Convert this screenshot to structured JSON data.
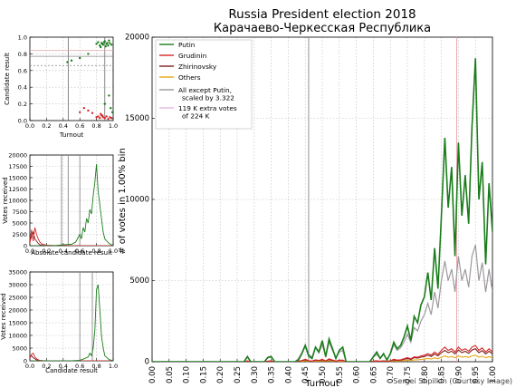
{
  "credit": "Sergei Shpilkin (Courtesy Image)",
  "colors": {
    "putin": "#1a7d1a",
    "grudinin": "#d62728",
    "zhirinovsky": "#7f1d1d",
    "others": "#e6a817",
    "except": "#999999",
    "extra": "#e0b8e0",
    "vline": "#888888",
    "pinkline": "#e8a0a8"
  },
  "chart_data": [
    {
      "id": "main",
      "type": "line",
      "title": "Russia President election 2018",
      "subtitle": "Карачаево-Черкесская Республика",
      "xlabel": "Turnout",
      "ylabel": "# of votes in 1.00% bin",
      "xlim": [
        0,
        1
      ],
      "ylim": [
        0,
        20000
      ],
      "xticks": [
        "0.00",
        "0.05",
        "0.10",
        "0.15",
        "0.20",
        "0.25",
        "0.30",
        "0.35",
        "0.40",
        "0.45",
        "0.50",
        "0.55",
        "0.60",
        "0.65",
        "0.70",
        "0.75",
        "0.80",
        "0.85",
        "0.90",
        "0.95",
        "1.00"
      ],
      "yticks": [
        "0",
        "5000",
        "10000",
        "15000",
        "20000"
      ],
      "grid": true,
      "legend_position": "top-left",
      "legend": [
        "Putin",
        "Grudinin",
        "Zhirinovsky",
        "Others",
        "All except Putin,\nscaled by 3.322",
        "119 K extra votes\nof 224 K"
      ],
      "vlines": [
        0.46,
        0.895
      ],
      "x": [
        0.0,
        0.05,
        0.1,
        0.15,
        0.2,
        0.25,
        0.27,
        0.28,
        0.29,
        0.3,
        0.33,
        0.34,
        0.35,
        0.36,
        0.4,
        0.42,
        0.43,
        0.44,
        0.45,
        0.46,
        0.47,
        0.48,
        0.49,
        0.5,
        0.51,
        0.52,
        0.53,
        0.54,
        0.55,
        0.56,
        0.57,
        0.58,
        0.6,
        0.62,
        0.64,
        0.65,
        0.66,
        0.67,
        0.68,
        0.69,
        0.7,
        0.71,
        0.72,
        0.73,
        0.74,
        0.75,
        0.76,
        0.77,
        0.78,
        0.79,
        0.8,
        0.81,
        0.82,
        0.83,
        0.84,
        0.85,
        0.86,
        0.87,
        0.88,
        0.89,
        0.9,
        0.91,
        0.92,
        0.93,
        0.94,
        0.95,
        0.96,
        0.97,
        0.98,
        0.99,
        1.0
      ],
      "series": [
        {
          "name": "Putin",
          "key": "putin",
          "values": [
            0,
            0,
            0,
            0,
            0,
            0,
            0,
            300,
            0,
            0,
            0,
            250,
            300,
            0,
            0,
            0,
            100,
            500,
            1000,
            350,
            200,
            900,
            600,
            1300,
            300,
            1400,
            800,
            200,
            700,
            900,
            0,
            0,
            0,
            0,
            0,
            300,
            600,
            200,
            500,
            100,
            500,
            1200,
            800,
            1000,
            1500,
            2200,
            1300,
            2800,
            2400,
            3500,
            4000,
            5500,
            3800,
            7000,
            4500,
            9000,
            13800,
            9500,
            12000,
            6500,
            13500,
            9000,
            11500,
            8500,
            14500,
            18700,
            10000,
            12300,
            6000,
            11000,
            8000
          ]
        },
        {
          "name": "Grudinin",
          "key": "grudinin",
          "values": [
            0,
            0,
            0,
            0,
            0,
            0,
            0,
            50,
            0,
            0,
            0,
            40,
            50,
            0,
            0,
            0,
            30,
            80,
            150,
            60,
            40,
            120,
            80,
            150,
            50,
            180,
            100,
            40,
            90,
            100,
            0,
            0,
            0,
            0,
            0,
            40,
            60,
            30,
            60,
            20,
            60,
            150,
            100,
            120,
            180,
            250,
            180,
            300,
            280,
            350,
            400,
            500,
            400,
            600,
            450,
            700,
            900,
            700,
            800,
            600,
            900,
            700,
            800,
            650,
            900,
            1000,
            700,
            850,
            600,
            800,
            600
          ]
        },
        {
          "name": "Zhirinovsky",
          "key": "zhirinovsky",
          "values": [
            0,
            0,
            0,
            0,
            0,
            0,
            0,
            40,
            0,
            0,
            0,
            30,
            40,
            0,
            0,
            0,
            20,
            60,
            120,
            50,
            30,
            100,
            60,
            120,
            40,
            140,
            80,
            30,
            70,
            80,
            0,
            0,
            0,
            0,
            0,
            30,
            50,
            20,
            50,
            15,
            50,
            120,
            80,
            100,
            140,
            200,
            140,
            250,
            220,
            280,
            320,
            400,
            320,
            480,
            360,
            560,
            700,
            560,
            640,
            480,
            720,
            560,
            640,
            520,
            720,
            800,
            560,
            680,
            480,
            640,
            480
          ]
        },
        {
          "name": "Others",
          "key": "others",
          "values": [
            0,
            0,
            0,
            0,
            0,
            0,
            0,
            20,
            0,
            0,
            0,
            15,
            20,
            0,
            0,
            0,
            10,
            30,
            60,
            25,
            15,
            50,
            30,
            60,
            20,
            70,
            40,
            15,
            35,
            40,
            0,
            0,
            0,
            0,
            0,
            15,
            25,
            10,
            25,
            8,
            25,
            60,
            40,
            50,
            70,
            100,
            70,
            120,
            110,
            140,
            160,
            200,
            160,
            240,
            180,
            280,
            350,
            280,
            320,
            240,
            360,
            280,
            320,
            260,
            360,
            400,
            280,
            340,
            240,
            320,
            240
          ]
        },
        {
          "name": "All except Putin,\nscaled by 3.322",
          "key": "except",
          "values": [
            0,
            0,
            0,
            0,
            0,
            0,
            0,
            350,
            0,
            0,
            0,
            280,
            350,
            0,
            0,
            0,
            200,
            550,
            1050,
            450,
            280,
            850,
            550,
            1050,
            350,
            1200,
            700,
            280,
            600,
            700,
            0,
            0,
            0,
            0,
            0,
            280,
            450,
            200,
            450,
            140,
            450,
            1050,
            700,
            850,
            1200,
            1700,
            1200,
            2100,
            1900,
            2500,
            2900,
            3600,
            2900,
            4300,
            3300,
            5000,
            6200,
            5000,
            5700,
            4300,
            6500,
            5000,
            5700,
            4600,
            6500,
            7200,
            5000,
            6100,
            4300,
            5700,
            4300
          ]
        },
        {
          "name": "119 K extra votes\nof 224 K",
          "key": "extra",
          "values": [
            0,
            0,
            0,
            0,
            0,
            0,
            0,
            350,
            0,
            0,
            0,
            280,
            350,
            0,
            0,
            0,
            200,
            550,
            1050,
            450,
            280,
            850,
            550,
            1050,
            350,
            1200,
            700,
            280,
            600,
            700,
            0,
            0,
            0,
            0,
            0,
            280,
            450,
            200,
            450,
            140,
            450,
            1050,
            700,
            850,
            1200,
            1700,
            1200,
            2100,
            1900,
            2500,
            2900,
            3600,
            2900,
            4300,
            3300,
            5000,
            6200,
            5000,
            5700,
            4300,
            6500,
            5000,
            5700,
            4600,
            6500,
            7200,
            5000,
            6100,
            4300,
            5700,
            4300
          ]
        }
      ]
    },
    {
      "id": "small1",
      "type": "scatter",
      "xlabel": "Turnout",
      "ylabel": "Candidate result",
      "xlim": [
        0,
        1
      ],
      "ylim": [
        0,
        1
      ],
      "xticks": [
        "0.0",
        "0.2",
        "0.4",
        "0.6",
        "0.8",
        "1.0"
      ],
      "yticks": [
        "0.0",
        "0.2",
        "0.4",
        "0.6",
        "0.8",
        "1.0"
      ],
      "grid": true,
      "hlines": [
        0.84,
        0.77,
        0.66
      ],
      "vlines": [
        0.46,
        0.9
      ],
      "series": [
        {
          "name": "",
          "key": "putin",
          "x": [
            0.8,
            0.82,
            0.84,
            0.86,
            0.88,
            0.9,
            0.92,
            0.94,
            0.96,
            0.98,
            0.85,
            0.87,
            0.89,
            0.91,
            0.93,
            0.95,
            0.6,
            0.7,
            0.45,
            0.5,
            0.9,
            0.95,
            0.97,
            0.99
          ],
          "y": [
            0.92,
            0.94,
            0.9,
            0.93,
            0.91,
            0.95,
            0.92,
            0.9,
            0.93,
            0.91,
            0.88,
            0.92,
            0.94,
            0.89,
            0.93,
            0.96,
            0.75,
            0.8,
            0.7,
            0.72,
            0.2,
            0.3,
            0.15,
            0.1
          ]
        },
        {
          "name": "",
          "key": "grudinin",
          "x": [
            0.8,
            0.82,
            0.84,
            0.86,
            0.88,
            0.9,
            0.92,
            0.94,
            0.96,
            0.98,
            0.85,
            0.87,
            0.6,
            0.7,
            0.75,
            0.65
          ],
          "y": [
            0.04,
            0.05,
            0.03,
            0.06,
            0.04,
            0.03,
            0.05,
            0.02,
            0.04,
            0.03,
            0.08,
            0.06,
            0.1,
            0.12,
            0.09,
            0.15
          ]
        }
      ]
    },
    {
      "id": "small2",
      "type": "line",
      "xlabel": "Absolute candidate result",
      "ylabel": "Votes received",
      "xlim": [
        0,
        1
      ],
      "ylim": [
        0,
        20000
      ],
      "xticks": [
        "0.0",
        "0.2",
        "0.4",
        "0.6",
        "0.8",
        "1.0"
      ],
      "yticks": [
        "0",
        "2500",
        "5000",
        "7500",
        "10000",
        "12500",
        "15000",
        "17500",
        "20000"
      ],
      "grid": true,
      "vlines": [
        0.38,
        0.46,
        0.6
      ],
      "x": [
        0.0,
        0.02,
        0.04,
        0.06,
        0.08,
        0.1,
        0.12,
        0.15,
        0.2,
        0.3,
        0.4,
        0.5,
        0.55,
        0.6,
        0.62,
        0.64,
        0.66,
        0.68,
        0.7,
        0.72,
        0.74,
        0.76,
        0.78,
        0.8,
        0.82,
        0.84,
        0.86,
        0.88,
        0.9,
        0.95,
        1.0
      ],
      "series": [
        {
          "name": "",
          "key": "putin",
          "values": [
            0,
            0,
            0,
            0,
            0,
            0,
            0,
            0,
            0,
            0,
            200,
            300,
            800,
            2500,
            1500,
            4000,
            3000,
            6000,
            5000,
            8000,
            7000,
            11000,
            14000,
            18000,
            12000,
            9000,
            6000,
            3000,
            1500,
            500,
            0
          ]
        },
        {
          "name": "",
          "key": "grudinin",
          "values": [
            500,
            3500,
            1000,
            4000,
            2500,
            1500,
            800,
            300,
            100,
            50,
            0,
            0,
            0,
            0,
            0,
            0,
            0,
            0,
            0,
            0,
            0,
            0,
            0,
            0,
            0,
            0,
            0,
            0,
            0,
            0,
            0
          ]
        },
        {
          "name": "",
          "key": "zhirinovsky",
          "values": [
            800,
            2000,
            3000,
            1500,
            1000,
            500,
            200,
            100,
            50,
            0,
            0,
            0,
            0,
            0,
            0,
            0,
            0,
            0,
            0,
            0,
            0,
            0,
            0,
            0,
            0,
            0,
            0,
            0,
            0,
            0,
            0
          ]
        }
      ]
    },
    {
      "id": "small3",
      "type": "line",
      "xlabel": "Candidate result",
      "ylabel": "Votes received",
      "xlim": [
        0,
        1
      ],
      "ylim": [
        0,
        35000
      ],
      "xticks": [
        "0.0",
        "0.2",
        "0.4",
        "0.6",
        "0.8",
        "1.0"
      ],
      "yticks": [
        "0",
        "5000",
        "10000",
        "15000",
        "20000",
        "25000",
        "30000",
        "35000"
      ],
      "grid": true,
      "vlines": [
        0.6,
        0.75
      ],
      "x": [
        0.0,
        0.02,
        0.04,
        0.06,
        0.08,
        0.1,
        0.12,
        0.15,
        0.2,
        0.3,
        0.5,
        0.6,
        0.65,
        0.7,
        0.72,
        0.74,
        0.76,
        0.78,
        0.8,
        0.82,
        0.84,
        0.86,
        0.88,
        0.9,
        0.95,
        1.0
      ],
      "series": [
        {
          "name": "",
          "key": "putin",
          "values": [
            0,
            0,
            0,
            0,
            0,
            0,
            0,
            0,
            0,
            0,
            0,
            200,
            800,
            1500,
            3000,
            2000,
            5000,
            12000,
            28000,
            30000,
            20000,
            10000,
            5000,
            2000,
            500,
            0
          ]
        },
        {
          "name": "",
          "key": "grudinin",
          "values": [
            1000,
            2500,
            3000,
            1500,
            800,
            400,
            200,
            100,
            50,
            0,
            0,
            0,
            0,
            0,
            0,
            0,
            0,
            0,
            0,
            0,
            0,
            0,
            0,
            0,
            0,
            0
          ]
        },
        {
          "name": "",
          "key": "zhirinovsky",
          "values": [
            1500,
            2000,
            1200,
            800,
            400,
            200,
            100,
            50,
            0,
            0,
            0,
            0,
            0,
            0,
            0,
            0,
            0,
            0,
            0,
            0,
            0,
            0,
            0,
            0,
            0,
            0
          ]
        }
      ]
    }
  ]
}
